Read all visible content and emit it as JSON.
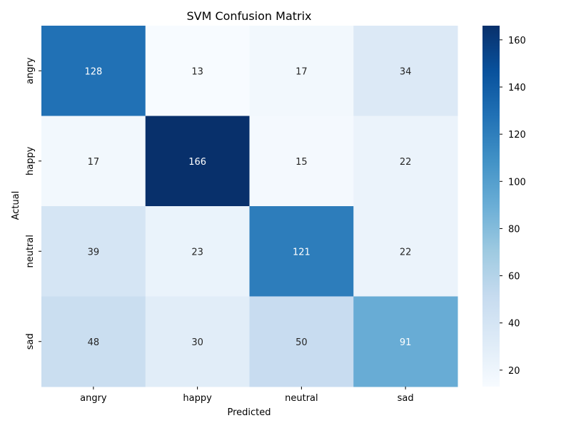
{
  "chart_data": {
    "type": "heatmap",
    "title": "SVM Confusion Matrix",
    "xlabel": "Predicted",
    "ylabel": "Actual",
    "x_categories": [
      "angry",
      "happy",
      "neutral",
      "sad"
    ],
    "y_categories": [
      "angry",
      "happy",
      "neutral",
      "sad"
    ],
    "values": [
      [
        128,
        13,
        17,
        34
      ],
      [
        17,
        166,
        15,
        22
      ],
      [
        39,
        23,
        121,
        22
      ],
      [
        48,
        30,
        50,
        91
      ]
    ],
    "colormap": "Blues",
    "vmin": 13,
    "vmax": 166,
    "colorbar_ticks": [
      20,
      40,
      60,
      80,
      100,
      120,
      140,
      160
    ],
    "annotations": true,
    "grid": false
  }
}
